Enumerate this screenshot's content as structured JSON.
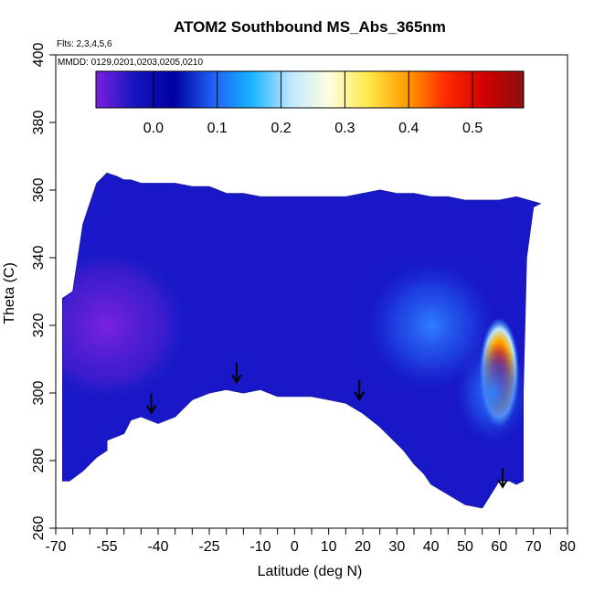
{
  "chart_data": {
    "type": "heatmap",
    "title": "ATOM2 Southbound MS_Abs_365nm",
    "annotations": [
      "Flts: 2,3,4,5,6",
      "MMDD: 0129,0201,0203,0205,0210"
    ],
    "xlabel": "Latitude (deg N)",
    "ylabel": "Theta (C)",
    "xlim": [
      -70,
      80
    ],
    "ylim": [
      260,
      400
    ],
    "x_ticks": [
      -70,
      -55,
      -40,
      -25,
      -10,
      0,
      10,
      20,
      30,
      40,
      50,
      60,
      70,
      80
    ],
    "x_tick_labels": [
      "-70",
      "-55",
      "-40",
      "-25",
      "-10",
      "0",
      "10",
      "20",
      "30",
      "40",
      "50",
      "60",
      "70",
      "80"
    ],
    "x_minor_ticks": [
      -65,
      -60,
      -50,
      -45,
      -35,
      -30,
      -20,
      -15,
      -5,
      5,
      15,
      25,
      35,
      45,
      55,
      65,
      75
    ],
    "y_ticks": [
      260,
      280,
      300,
      320,
      340,
      360,
      380,
      400
    ],
    "y_tick_labels": [
      "260",
      "280",
      "300",
      "320",
      "340",
      "360",
      "380",
      "400"
    ],
    "colorbar": {
      "range": [
        -0.09,
        0.58
      ],
      "ticks": [
        0.0,
        0.1,
        0.2,
        0.3,
        0.4,
        0.5
      ],
      "tick_labels": [
        "0.0",
        "0.1",
        "0.2",
        "0.3",
        "0.4",
        "0.5"
      ],
      "colors": [
        "#7b1fe0",
        "#1515c0",
        "#0000a0",
        "#1f5ff5",
        "#19b4ff",
        "#bfe7ff",
        "#fffde0",
        "#ffe84a",
        "#ff9c00",
        "#ff2a00",
        "#d00000",
        "#8a1010"
      ]
    },
    "domain_boundary": {
      "lats": [
        -68,
        -66,
        -62,
        -58,
        -55,
        -55,
        -50,
        -48,
        -45,
        -40,
        -35,
        -30,
        -25,
        -20,
        -15,
        -10,
        -5,
        0,
        5,
        10,
        15,
        20,
        25,
        28,
        32,
        35,
        38,
        40,
        45,
        50,
        55,
        60,
        63,
        65,
        67,
        67,
        68,
        70,
        72,
        72,
        65,
        60,
        55,
        50,
        45,
        40,
        35,
        30,
        25,
        20,
        15,
        10,
        5,
        0,
        -5,
        -10,
        -15,
        -20,
        -25,
        -30,
        -35,
        -40,
        -45,
        -48,
        -50,
        -52,
        -55,
        -58,
        -62,
        -65,
        -68
      ],
      "thetas": [
        274,
        274,
        277,
        281,
        283,
        286,
        288,
        292,
        293,
        291,
        293,
        298,
        300,
        301,
        300,
        301,
        299,
        299,
        299,
        298,
        297,
        294,
        290,
        287,
        283,
        279,
        276,
        273,
        270,
        267,
        266,
        274,
        274,
        273,
        274,
        300,
        340,
        355,
        356,
        356,
        358,
        357,
        357,
        357,
        358,
        358,
        359,
        359,
        360,
        359,
        358,
        358,
        358,
        358,
        358,
        358,
        359,
        359,
        361,
        361,
        362,
        362,
        362,
        363,
        363,
        364,
        365,
        362,
        350,
        330,
        328
      ]
    },
    "field_features": [
      {
        "type": "hotspot",
        "lat": 60,
        "theta": 306,
        "value": 0.55
      },
      {
        "type": "hotspot",
        "lat": 58,
        "theta": 300,
        "value": 0.25
      },
      {
        "type": "low",
        "lat": -55,
        "theta": 320,
        "value": -0.08
      },
      {
        "type": "moderate",
        "lat": 40,
        "theta": 320,
        "value": 0.1
      }
    ],
    "arrows": [
      {
        "lat": -42,
        "theta": 295
      },
      {
        "lat": -17,
        "theta": 304
      },
      {
        "lat": 19,
        "theta": 299
      },
      {
        "lat": 61,
        "theta": 273
      }
    ]
  }
}
